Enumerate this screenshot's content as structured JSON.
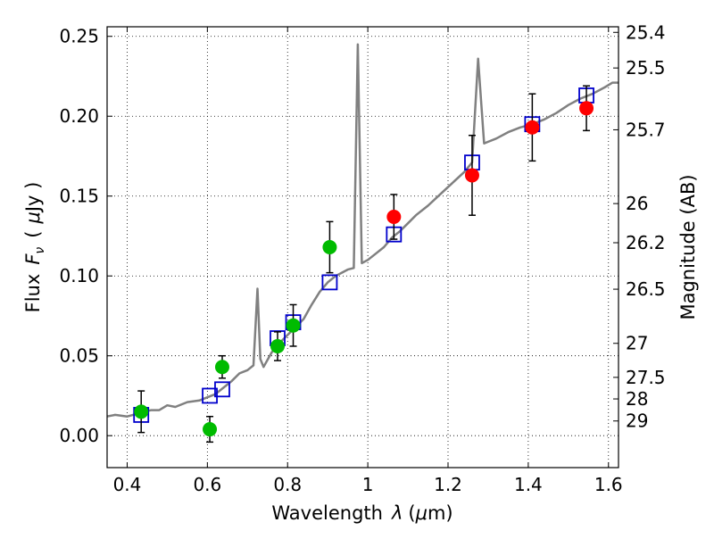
{
  "chart_data": {
    "type": "scatter",
    "title": "",
    "xlabel_text": "Wavelength",
    "xlabel_lambda": "λ",
    "xlabel_unit_open": "(",
    "xlabel_unit_mu": "μ",
    "xlabel_unit_rest": "m)",
    "ylabel_left_text": "Flux",
    "ylabel_left_f": "F",
    "ylabel_left_nu": "ν",
    "ylabel_left_unit_open": "(",
    "ylabel_left_unit_mu": "μ",
    "ylabel_left_unit_rest": "Jy )",
    "ylabel_right": "Magnitude (AB)",
    "xlim": [
      0.35,
      1.625
    ],
    "ylim": [
      -0.02,
      0.256
    ],
    "grid": true,
    "x_ticks": [
      {
        "value": 0.4,
        "label": "0.4"
      },
      {
        "value": 0.6,
        "label": "0.6"
      },
      {
        "value": 0.8,
        "label": "0.8"
      },
      {
        "value": 1.0,
        "label": "1"
      },
      {
        "value": 1.2,
        "label": "1.2"
      },
      {
        "value": 1.4,
        "label": "1.4"
      },
      {
        "value": 1.6,
        "label": "1.6"
      }
    ],
    "y_ticks": [
      {
        "value": 0.0,
        "label": "0.00"
      },
      {
        "value": 0.05,
        "label": "0.05"
      },
      {
        "value": 0.1,
        "label": "0.10"
      },
      {
        "value": 0.15,
        "label": "0.15"
      },
      {
        "value": 0.2,
        "label": "0.20"
      },
      {
        "value": 0.25,
        "label": "0.25"
      }
    ],
    "right_ticks": [
      {
        "label": "25.4",
        "flux": 0.2525
      },
      {
        "label": "25.5",
        "flux": 0.2302
      },
      {
        "label": "25.7",
        "flux": 0.1915
      },
      {
        "label": "26",
        "flux": 0.1453
      },
      {
        "label": "26.2",
        "flux": 0.1208
      },
      {
        "label": "26.5",
        "flux": 0.0917
      },
      {
        "label": "27",
        "flux": 0.0578
      },
      {
        "label": "27.5",
        "flux": 0.0365
      },
      {
        "label": "28",
        "flux": 0.023
      },
      {
        "label": "29",
        "flux": 0.0092
      }
    ],
    "series": [
      {
        "marker": "circle",
        "color": "#00bb00",
        "points": [
          {
            "x": 0.435,
            "y": 0.015,
            "err": 0.013
          },
          {
            "x": 0.606,
            "y": 0.004,
            "err": 0.008
          },
          {
            "x": 0.637,
            "y": 0.043,
            "err": 0.007
          },
          {
            "x": 0.775,
            "y": 0.056,
            "err": 0.009
          },
          {
            "x": 0.814,
            "y": 0.069,
            "err": 0.013
          },
          {
            "x": 0.905,
            "y": 0.118,
            "err": 0.016
          }
        ]
      },
      {
        "marker": "circle",
        "color": "#ff0000",
        "points": [
          {
            "x": 1.065,
            "y": 0.137,
            "err": 0.014
          },
          {
            "x": 1.26,
            "y": 0.163,
            "err": 0.025
          },
          {
            "x": 1.41,
            "y": 0.193,
            "err": 0.021
          },
          {
            "x": 1.545,
            "y": 0.205,
            "err": 0.014
          }
        ]
      },
      {
        "marker": "open-square",
        "color": "#0000cc",
        "points": [
          {
            "x": 0.435,
            "y": 0.013
          },
          {
            "x": 0.606,
            "y": 0.025
          },
          {
            "x": 0.637,
            "y": 0.029
          },
          {
            "x": 0.775,
            "y": 0.061
          },
          {
            "x": 0.814,
            "y": 0.071
          },
          {
            "x": 0.905,
            "y": 0.096
          },
          {
            "x": 1.065,
            "y": 0.126
          },
          {
            "x": 1.26,
            "y": 0.171
          },
          {
            "x": 1.41,
            "y": 0.195
          },
          {
            "x": 1.545,
            "y": 0.213
          }
        ]
      },
      {
        "marker": "line",
        "color": "#808080",
        "points": [
          [
            0.35,
            0.012
          ],
          [
            0.37,
            0.013
          ],
          [
            0.4,
            0.012
          ],
          [
            0.43,
            0.014
          ],
          [
            0.46,
            0.016
          ],
          [
            0.48,
            0.016
          ],
          [
            0.5,
            0.019
          ],
          [
            0.52,
            0.018
          ],
          [
            0.55,
            0.021
          ],
          [
            0.58,
            0.022
          ],
          [
            0.6,
            0.024
          ],
          [
            0.62,
            0.026
          ],
          [
            0.64,
            0.03
          ],
          [
            0.66,
            0.034
          ],
          [
            0.68,
            0.039
          ],
          [
            0.7,
            0.041
          ],
          [
            0.715,
            0.044
          ],
          [
            0.725,
            0.092
          ],
          [
            0.732,
            0.048
          ],
          [
            0.74,
            0.043
          ],
          [
            0.76,
            0.052
          ],
          [
            0.78,
            0.058
          ],
          [
            0.8,
            0.063
          ],
          [
            0.82,
            0.068
          ],
          [
            0.84,
            0.073
          ],
          [
            0.86,
            0.082
          ],
          [
            0.88,
            0.09
          ],
          [
            0.9,
            0.096
          ],
          [
            0.92,
            0.1
          ],
          [
            0.95,
            0.104
          ],
          [
            0.965,
            0.105
          ],
          [
            0.975,
            0.245
          ],
          [
            0.985,
            0.108
          ],
          [
            1.0,
            0.11
          ],
          [
            1.02,
            0.114
          ],
          [
            1.04,
            0.118
          ],
          [
            1.06,
            0.124
          ],
          [
            1.08,
            0.128
          ],
          [
            1.1,
            0.133
          ],
          [
            1.12,
            0.138
          ],
          [
            1.15,
            0.144
          ],
          [
            1.18,
            0.151
          ],
          [
            1.21,
            0.158
          ],
          [
            1.24,
            0.165
          ],
          [
            1.26,
            0.171
          ],
          [
            1.275,
            0.236
          ],
          [
            1.29,
            0.183
          ],
          [
            1.3,
            0.184
          ],
          [
            1.32,
            0.186
          ],
          [
            1.35,
            0.19
          ],
          [
            1.38,
            0.193
          ],
          [
            1.41,
            0.195
          ],
          [
            1.44,
            0.198
          ],
          [
            1.47,
            0.202
          ],
          [
            1.5,
            0.207
          ],
          [
            1.53,
            0.211
          ],
          [
            1.56,
            0.214
          ],
          [
            1.59,
            0.218
          ],
          [
            1.61,
            0.221
          ],
          [
            1.625,
            0.221
          ]
        ]
      }
    ]
  }
}
